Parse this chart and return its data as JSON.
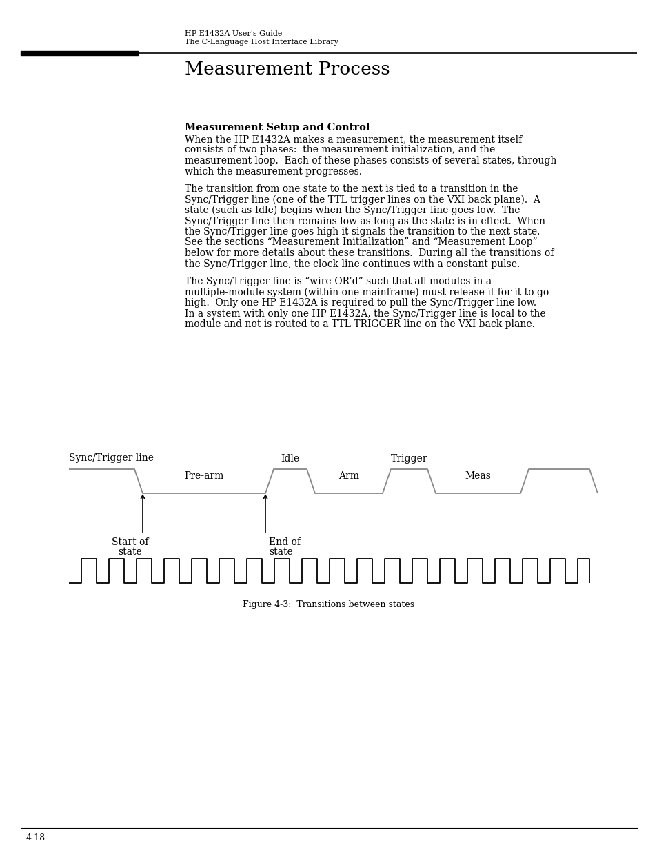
{
  "bg_color": "#ffffff",
  "text_color": "#000000",
  "line_color": "#888888",
  "header_line1": "HP E1432A User's Guide",
  "header_line2": "The C-Language Host Interface Library",
  "title": "Measurement Process",
  "section_title": "Measurement Setup and Control",
  "para1": "When the HP E1432A makes a measurement, the measurement itself\nconsists of two phases:  the measurement initialization, and the\nmeasurement loop.  Each of these phases consists of several states, through\nwhich the measurement progresses.",
  "para2": "The transition from one state to the next is tied to a transition in the\nSync/Trigger line (one of the TTL trigger lines on the VXI back plane).  A\nstate (such as Idle) begins when the Sync/Trigger line goes low.  The\nSync/Trigger line then remains low as long as the state is in effect.  When\nthe Sync/Trigger line goes high it signals the transition to the next state.\nSee the sections “Measurement Initialization” and “Measurement Loop”\nbelow for more details about these transitions.  During all the transitions of\nthe Sync/Trigger line, the clock line continues with a constant pulse.",
  "para3": "The Sync/Trigger line is “wire-OR’d” such that all modules in a\nmultiple-module system (within one mainframe) must release it for it to go\nhigh.  Only one HP E1432A is required to pull the Sync/Trigger line low.\nIn a system with only one HP E1432A, the Sync/Trigger line is local to the\nmodule and not is routed to a TTL TRIGGER line on the VXI back plane.",
  "figure_caption": "Figure 4-3:  Transitions between states",
  "footer_text": "4-18",
  "diagram_label": "Sync/Trigger line",
  "annotation1": "Start of\nstate",
  "annotation2": "End of\nstate"
}
